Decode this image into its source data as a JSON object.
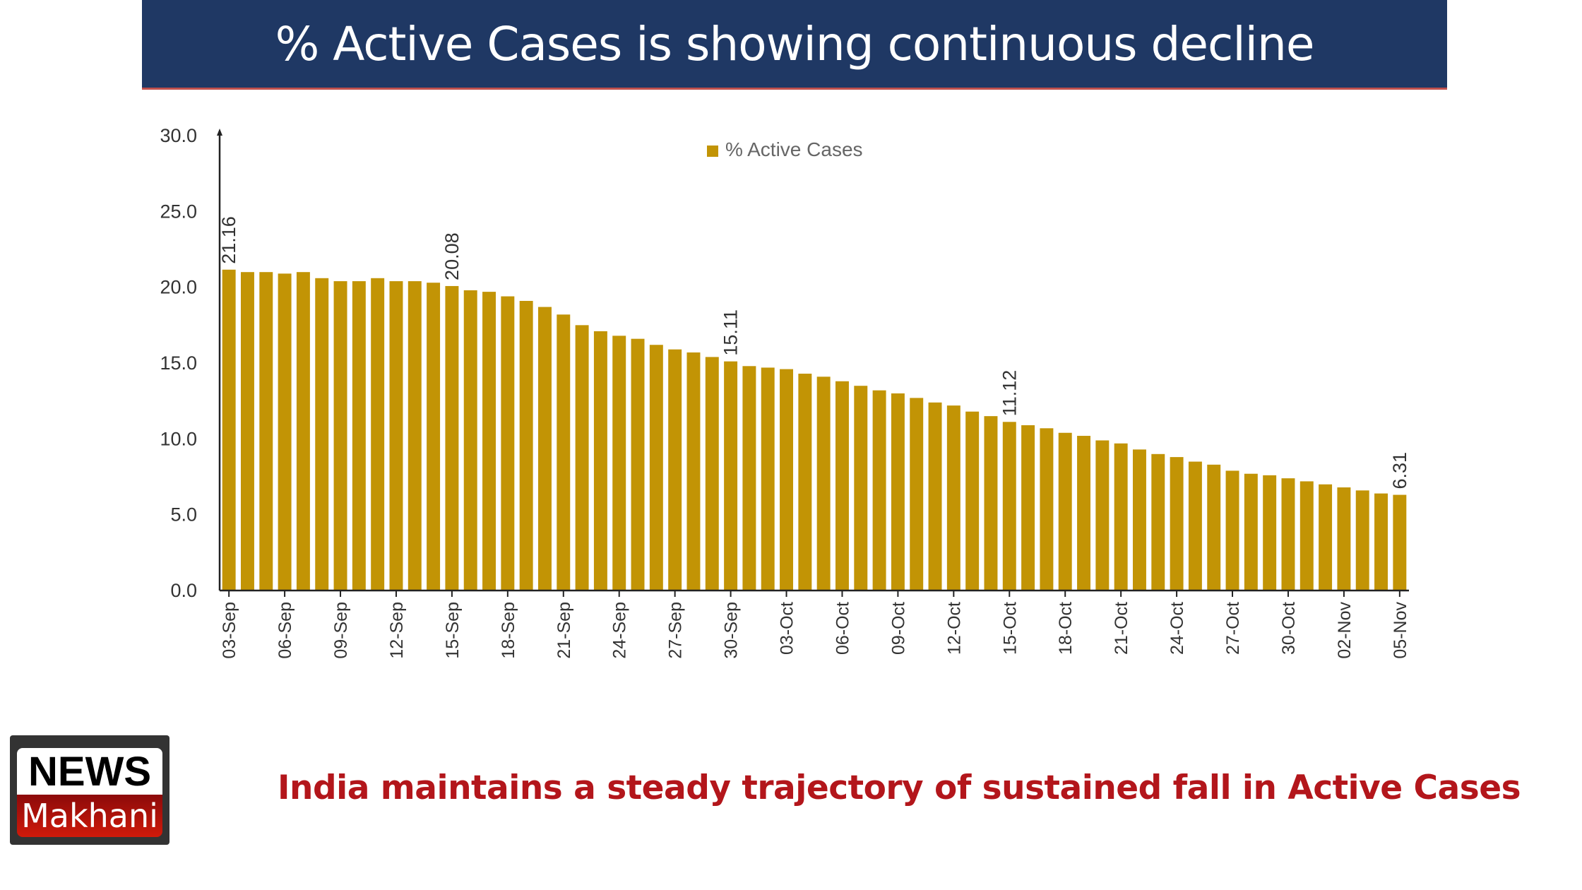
{
  "header": {
    "title": "% Active Cases is showing continuous decline"
  },
  "chart_data": {
    "type": "bar",
    "title": "% Active Cases is showing continuous decline",
    "legend": {
      "label": "% Active Cases",
      "placement": "top-center"
    },
    "color": "#c29405",
    "ylim": [
      0,
      30
    ],
    "yticks": [
      "0.0",
      "5.0",
      "10.0",
      "15.0",
      "20.0",
      "25.0",
      "30.0"
    ],
    "xtick_labels": [
      "03-Sep",
      "06-Sep",
      "09-Sep",
      "12-Sep",
      "15-Sep",
      "18-Sep",
      "21-Sep",
      "24-Sep",
      "27-Sep",
      "30-Sep",
      "03-Oct",
      "06-Oct",
      "09-Oct",
      "12-Oct",
      "15-Oct",
      "18-Oct",
      "21-Oct",
      "24-Oct",
      "27-Oct",
      "30-Oct",
      "02-Nov",
      "05-Nov"
    ],
    "categories": [
      "03-Sep",
      "04-Sep",
      "05-Sep",
      "06-Sep",
      "07-Sep",
      "08-Sep",
      "09-Sep",
      "10-Sep",
      "11-Sep",
      "12-Sep",
      "13-Sep",
      "14-Sep",
      "15-Sep",
      "16-Sep",
      "17-Sep",
      "18-Sep",
      "19-Sep",
      "20-Sep",
      "21-Sep",
      "22-Sep",
      "23-Sep",
      "24-Sep",
      "25-Sep",
      "26-Sep",
      "27-Sep",
      "28-Sep",
      "29-Sep",
      "30-Sep",
      "01-Oct",
      "02-Oct",
      "03-Oct",
      "04-Oct",
      "05-Oct",
      "06-Oct",
      "07-Oct",
      "08-Oct",
      "09-Oct",
      "10-Oct",
      "11-Oct",
      "12-Oct",
      "13-Oct",
      "14-Oct",
      "15-Oct",
      "16-Oct",
      "17-Oct",
      "18-Oct",
      "19-Oct",
      "20-Oct",
      "21-Oct",
      "22-Oct",
      "23-Oct",
      "24-Oct",
      "25-Oct",
      "26-Oct",
      "27-Oct",
      "28-Oct",
      "29-Oct",
      "30-Oct",
      "31-Oct",
      "01-Nov",
      "02-Nov",
      "03-Nov",
      "04-Nov",
      "05-Nov"
    ],
    "values": [
      21.16,
      21.0,
      21.0,
      20.9,
      21.0,
      20.6,
      20.4,
      20.4,
      20.6,
      20.4,
      20.4,
      20.3,
      20.08,
      19.8,
      19.7,
      19.4,
      19.1,
      18.7,
      18.2,
      17.5,
      17.1,
      16.8,
      16.6,
      16.2,
      15.9,
      15.7,
      15.4,
      15.11,
      14.8,
      14.7,
      14.6,
      14.3,
      14.1,
      13.8,
      13.5,
      13.2,
      13.0,
      12.7,
      12.4,
      12.2,
      11.8,
      11.5,
      11.12,
      10.9,
      10.7,
      10.4,
      10.2,
      9.9,
      9.7,
      9.3,
      9.0,
      8.8,
      8.5,
      8.3,
      7.9,
      7.7,
      7.6,
      7.4,
      7.2,
      7.0,
      6.8,
      6.6,
      6.4,
      6.31
    ],
    "data_labels": [
      {
        "category": "03-Sep",
        "text": "21.16"
      },
      {
        "category": "15-Sep",
        "text": "20.08"
      },
      {
        "category": "30-Sep",
        "text": "15.11"
      },
      {
        "category": "15-Oct",
        "text": "11.12"
      },
      {
        "category": "05-Nov",
        "text": "6.31"
      }
    ]
  },
  "footer": {
    "caption": "India maintains a steady trajectory of sustained fall in Active Cases",
    "logo_top": "NEWS",
    "logo_bottom": "Makhani"
  }
}
